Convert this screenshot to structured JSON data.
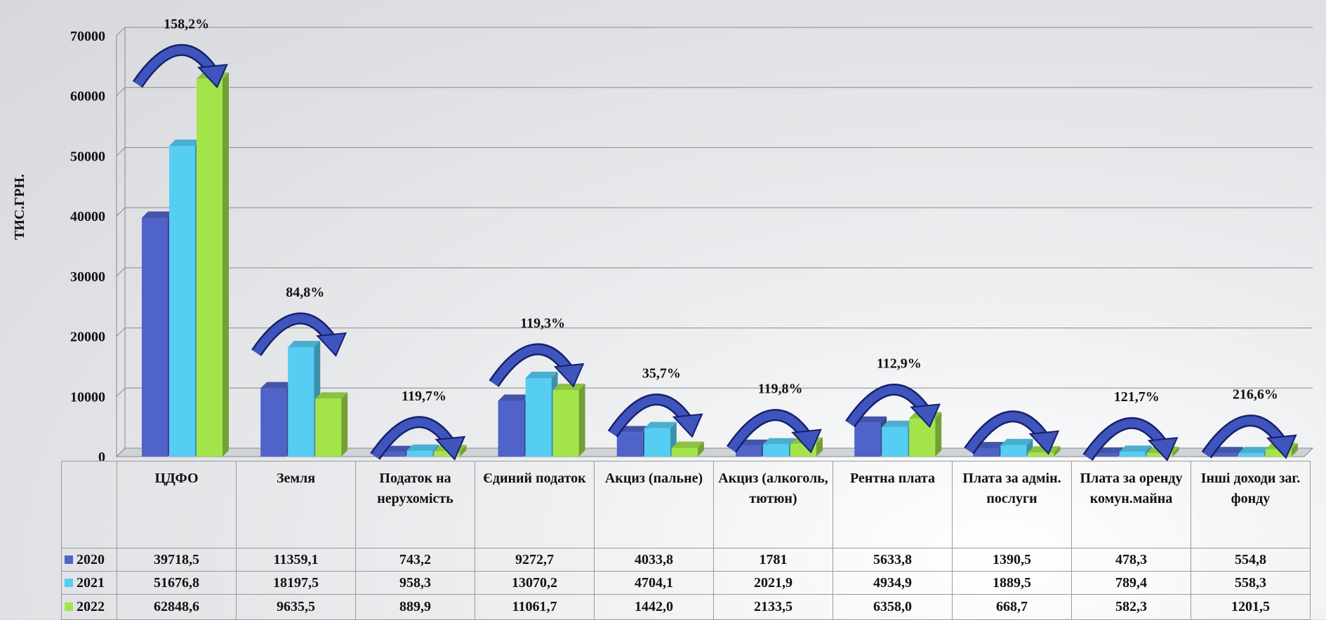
{
  "chart_data": {
    "type": "bar",
    "y_label": "ТИС.ГРН.",
    "categories": [
      "ЦДФО",
      "Земля",
      "Податок на нерухомість",
      "Єдиний податок",
      "Акциз (пальне)",
      "Акциз (алкоголь, тютюн)",
      "Рентна плата",
      "Плата за адмін. послуги",
      "Плата за оренду комун.майна",
      "Інші доходи заг. фонду"
    ],
    "series": [
      {
        "name": "2020",
        "color": "#4f63c9",
        "values": [
          39718.5,
          11359.1,
          743.2,
          9272.7,
          4033.8,
          1781,
          5633.8,
          1390.5,
          478.3,
          554.8
        ],
        "value_labels": [
          "39718,5",
          "11359,1",
          "743,2",
          "9272,7",
          "4033,8",
          "1781",
          "5633,8",
          "1390,5",
          "478,3",
          "554,8"
        ]
      },
      {
        "name": "2021",
        "color": "#56cdf3",
        "values": [
          51676.8,
          18197.5,
          958.3,
          13070.2,
          4704.1,
          2021.9,
          4934.9,
          1889.5,
          789.4,
          558.3
        ],
        "value_labels": [
          "51676,8",
          "18197,5",
          "958,3",
          "13070,2",
          "4704,1",
          "2021,9",
          "4934,9",
          "1889,5",
          "789,4",
          "558,3"
        ]
      },
      {
        "name": "2022",
        "color": "#a4e44b",
        "values": [
          62848.6,
          9635.5,
          889.9,
          11061.7,
          1442.0,
          2133.5,
          6358.0,
          668.7,
          582.3,
          1201.5
        ],
        "value_labels": [
          "62848,6",
          "9635,5",
          "889,9",
          "11061,7",
          "1442,0",
          "2133,5",
          "6358,0",
          "668,7",
          "582,3",
          "1201,5"
        ]
      }
    ],
    "annotations": [
      "158,2%",
      "84,8%",
      "119,7%",
      "119,3%",
      "35,7%",
      "119,8%",
      "112,9%",
      null,
      "121,7%",
      "216,6%"
    ],
    "ylim": [
      0,
      70000
    ],
    "yticks": [
      0,
      10000,
      20000,
      30000,
      40000,
      50000,
      60000,
      70000
    ],
    "grid": true
  }
}
